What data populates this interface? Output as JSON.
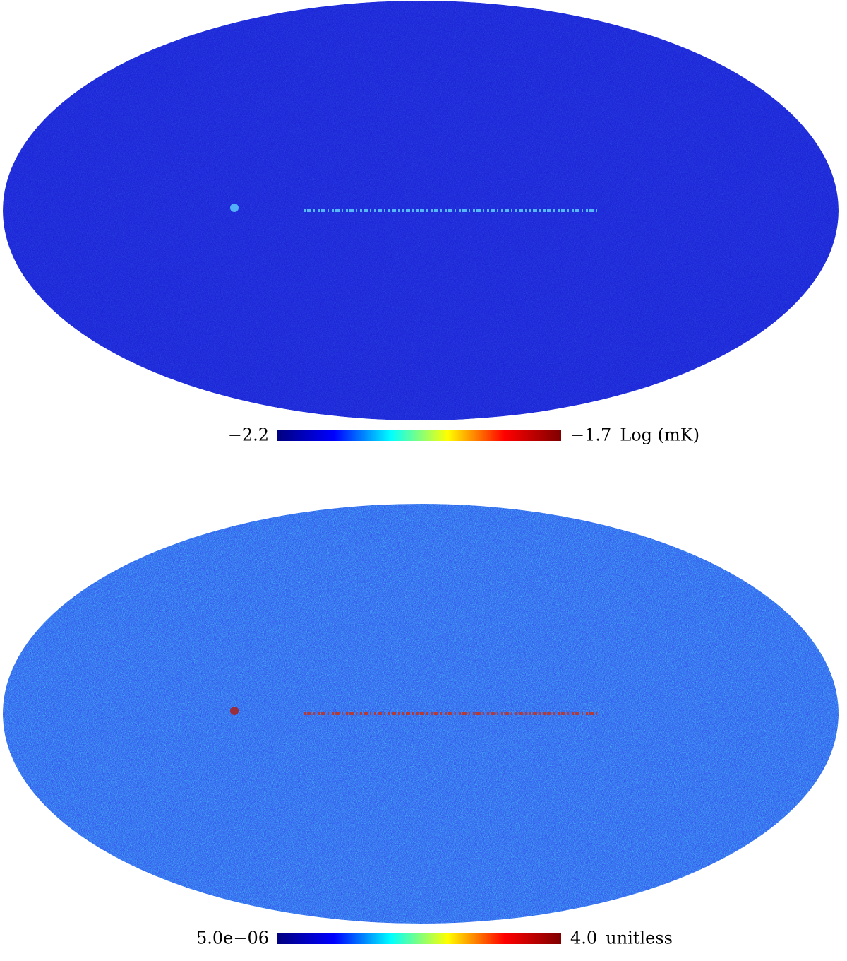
{
  "chart_data": [
    {
      "type": "mollweide",
      "map_color": "#1b1fd6",
      "noise": 0.25,
      "colors": [
        "#00007f",
        "#0000ff",
        "#00ffff",
        "#ffff00",
        "#ff0000",
        "#7f0000"
      ],
      "colorbar": {
        "ticks": [
          {
            "value": -2.2,
            "label": "−2.2"
          },
          {
            "value": -1.7,
            "label": "−1.7"
          }
        ],
        "unit": "Log (mK)"
      }
    },
    {
      "type": "mollweide",
      "map_color": "#2a55e8",
      "noise": 0.9,
      "colors": [
        "#00007f",
        "#0000ff",
        "#00ffff",
        "#ffff00",
        "#ff0000",
        "#7f0000"
      ],
      "colorbar": {
        "ticks": [
          {
            "value": 5e-06,
            "label": "5.0e−06"
          },
          {
            "value": 4,
            "label": "4.0"
          }
        ],
        "unit": "unitless"
      }
    }
  ]
}
